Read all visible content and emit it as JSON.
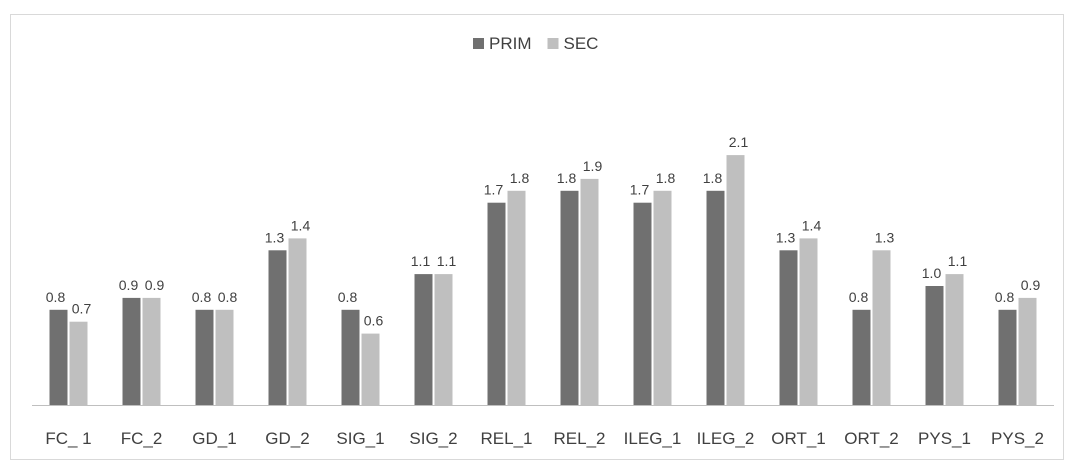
{
  "chart_data": {
    "type": "bar",
    "title": "",
    "xlabel": "",
    "ylabel": "",
    "ylim": [
      0,
      2.5
    ],
    "grid": false,
    "legend_position": "top-center",
    "categories": [
      "FC_ 1",
      "FC_2",
      "GD_1",
      "GD_2",
      "SIG_1",
      "SIG_2",
      "REL_1",
      "REL_2",
      "ILEG_1",
      "ILEG_2",
      "ORT_1",
      "ORT_2",
      "PYS_1",
      "PYS_2"
    ],
    "series": [
      {
        "name": "PRIM",
        "color": "#707070",
        "values": [
          0.8,
          0.9,
          0.8,
          1.3,
          0.8,
          1.1,
          1.7,
          1.8,
          1.7,
          1.8,
          1.3,
          0.8,
          1.0,
          0.8
        ],
        "labels": [
          "0.8",
          "0.9",
          "0.8",
          "1.3",
          "0.8",
          "1.1",
          "1.7",
          "1.8",
          "1.7",
          "1.8",
          "1.3",
          "0.8",
          "1.0",
          "0.8"
        ]
      },
      {
        "name": "SEC",
        "color": "#bfbfbf",
        "values": [
          0.7,
          0.9,
          0.8,
          1.4,
          0.6,
          1.1,
          1.8,
          1.9,
          1.8,
          2.1,
          1.4,
          1.3,
          1.1,
          0.9
        ],
        "labels": [
          "0.7",
          "0.9",
          "0.8",
          "1.4",
          "0.6",
          "1.1",
          "1.8",
          "1.9",
          "1.8",
          "2.1",
          "1.4",
          "1.3",
          "1.1",
          "0.9"
        ]
      }
    ]
  }
}
